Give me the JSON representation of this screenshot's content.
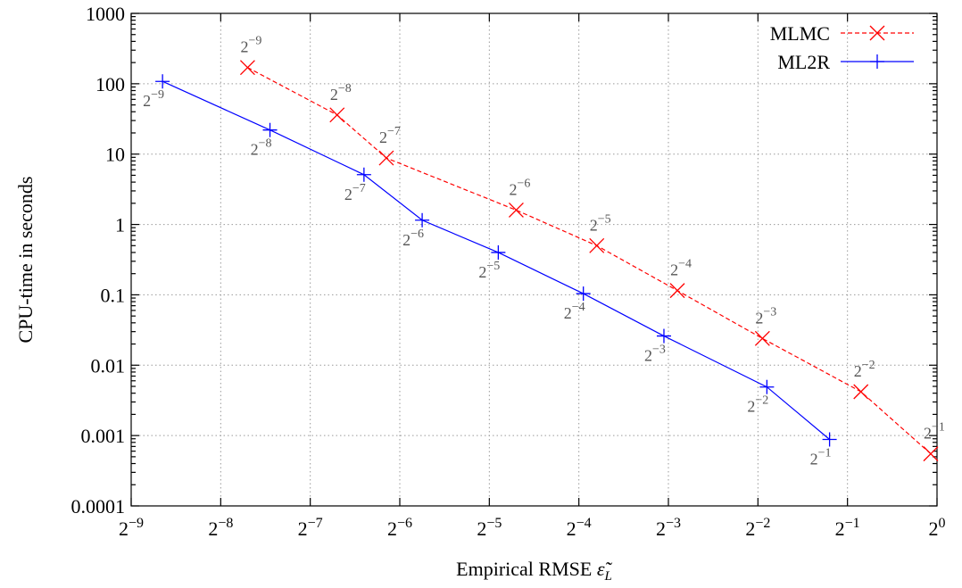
{
  "chart_data": {
    "type": "line",
    "xscale": "log2",
    "yscale": "log10",
    "xlim": [
      "2^-9",
      "2^0"
    ],
    "ylim": [
      0.0001,
      1000
    ],
    "grid": true,
    "legend_position": "top-right",
    "xlabel": {
      "text": "Empirical RMSE ",
      "symbol": "ε̃",
      "subscript": "L"
    },
    "ylabel": "CPU-time in seconds",
    "xticks": [
      {
        "base": "2",
        "exp": "−9"
      },
      {
        "base": "2",
        "exp": "−8"
      },
      {
        "base": "2",
        "exp": "−7"
      },
      {
        "base": "2",
        "exp": "−6"
      },
      {
        "base": "2",
        "exp": "−5"
      },
      {
        "base": "2",
        "exp": "−4"
      },
      {
        "base": "2",
        "exp": "−3"
      },
      {
        "base": "2",
        "exp": "−2"
      },
      {
        "base": "2",
        "exp": "−1"
      },
      {
        "base": "2",
        "exp": "0"
      }
    ],
    "yticks": [
      "0.0001",
      "0.001",
      "0.01",
      "0.1",
      "1",
      "10",
      "100",
      "1000"
    ],
    "series": [
      {
        "name": "MLMC",
        "color": "#ff0000",
        "line_style": "dashed",
        "marker": "x",
        "points": [
          {
            "x_log2": -7.7,
            "y": 170,
            "label": {
              "base": "2",
              "exp": "−9"
            }
          },
          {
            "x_log2": -6.7,
            "y": 36,
            "label": {
              "base": "2",
              "exp": "−8"
            }
          },
          {
            "x_log2": -6.15,
            "y": 8.8,
            "label": {
              "base": "2",
              "exp": "−7"
            }
          },
          {
            "x_log2": -4.7,
            "y": 1.6,
            "label": {
              "base": "2",
              "exp": "−6"
            }
          },
          {
            "x_log2": -3.8,
            "y": 0.5,
            "label": {
              "base": "2",
              "exp": "−5"
            }
          },
          {
            "x_log2": -2.9,
            "y": 0.115,
            "label": {
              "base": "2",
              "exp": "−4"
            }
          },
          {
            "x_log2": -1.95,
            "y": 0.024,
            "label": {
              "base": "2",
              "exp": "−3"
            }
          },
          {
            "x_log2": -0.85,
            "y": 0.0042,
            "label": {
              "base": "2",
              "exp": "−2"
            }
          },
          {
            "x_log2": -0.07,
            "y": 0.00055,
            "label": {
              "base": "2",
              "exp": "−1"
            }
          }
        ]
      },
      {
        "name": "ML2R",
        "color": "#0000ff",
        "line_style": "solid",
        "marker": "+",
        "points": [
          {
            "x_log2": -8.65,
            "y": 108,
            "label": {
              "base": "2",
              "exp": "−9"
            }
          },
          {
            "x_log2": -7.45,
            "y": 22,
            "label": {
              "base": "2",
              "exp": "−8"
            }
          },
          {
            "x_log2": -6.4,
            "y": 5.1,
            "label": {
              "base": "2",
              "exp": "−7"
            }
          },
          {
            "x_log2": -5.75,
            "y": 1.15,
            "label": {
              "base": "2",
              "exp": "−6"
            }
          },
          {
            "x_log2": -4.9,
            "y": 0.4,
            "label": {
              "base": "2",
              "exp": "−5"
            }
          },
          {
            "x_log2": -3.95,
            "y": 0.104,
            "label": {
              "base": "2",
              "exp": "−4"
            }
          },
          {
            "x_log2": -3.05,
            "y": 0.026,
            "label": {
              "base": "2",
              "exp": "−3"
            }
          },
          {
            "x_log2": -1.9,
            "y": 0.0049,
            "label": {
              "base": "2",
              "exp": "−2"
            }
          },
          {
            "x_log2": -1.2,
            "y": 0.00088,
            "label": {
              "base": "2",
              "exp": "−1"
            }
          }
        ]
      }
    ]
  }
}
